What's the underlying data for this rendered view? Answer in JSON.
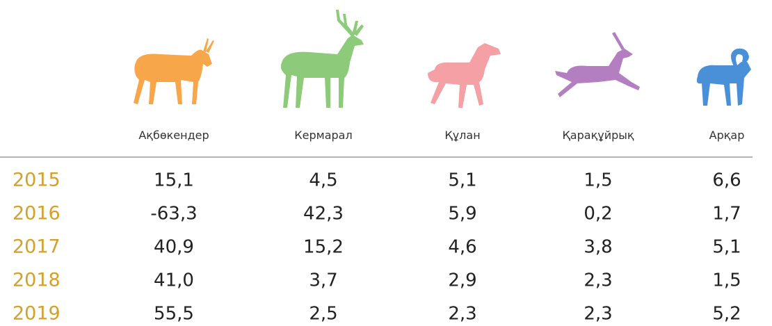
{
  "table": {
    "columns": [
      "Ақбөкендер",
      "Кермарал",
      "Құлан",
      "Қарақұйрық",
      "Арқар"
    ],
    "rows": [
      {
        "year": "2015",
        "values": [
          "15,1",
          "4,5",
          "5,1",
          "1,5",
          "6,6"
        ]
      },
      {
        "year": "2016",
        "values": [
          "-63,3",
          "42,3",
          "5,9",
          "0,2",
          "1,7"
        ]
      },
      {
        "year": "2017",
        "values": [
          "40,9",
          "15,2",
          "4,6",
          "3,8",
          "5,1"
        ]
      },
      {
        "year": "2018",
        "values": [
          "41,0",
          "3,7",
          "2,9",
          "2,3",
          "1,5"
        ]
      },
      {
        "year": "2019",
        "values": [
          "55,5",
          "2,5",
          "2,3",
          "2,3",
          "5,2"
        ]
      }
    ]
  }
}
